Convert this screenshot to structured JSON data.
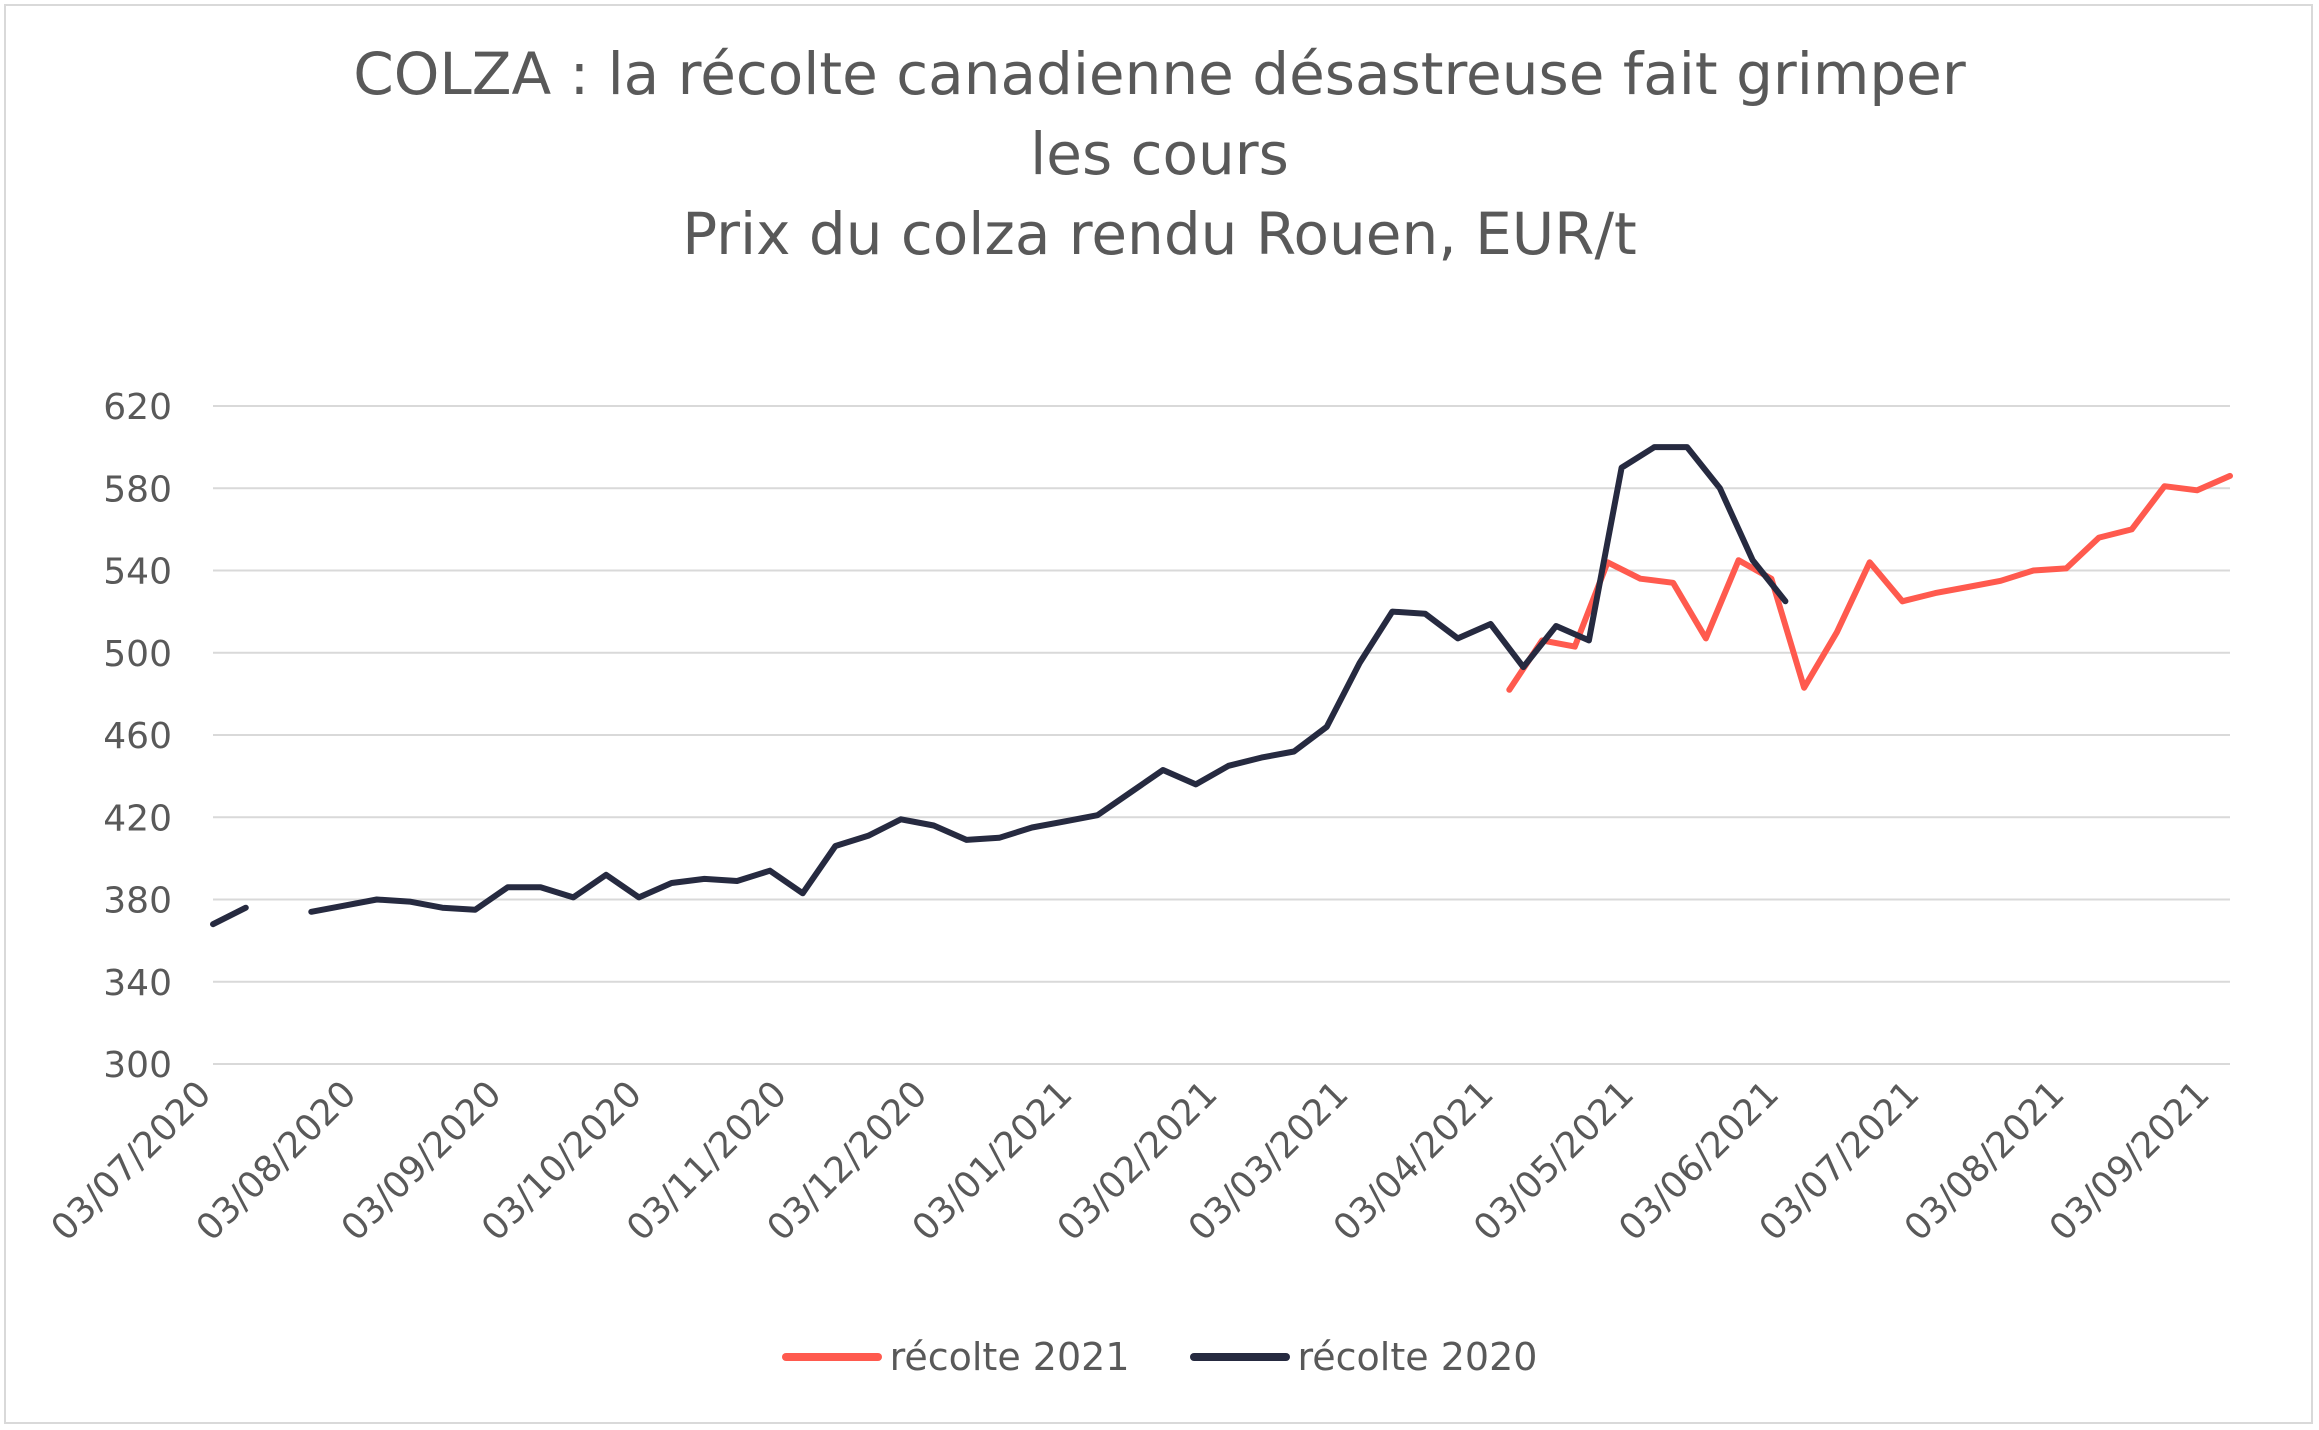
{
  "chart_data": {
    "type": "line",
    "title_lines": [
      "COLZA : la récolte canadienne désastreuse fait grimper",
      "les cours",
      "Prix du colza rendu Rouen, EUR/t"
    ],
    "xlabel": "",
    "ylabel": "",
    "ylim": [
      300,
      620
    ],
    "yticks": [
      300,
      340,
      380,
      420,
      460,
      500,
      540,
      580,
      620
    ],
    "x_tick_labels": [
      "03/07/2020",
      "03/08/2020",
      "03/09/2020",
      "03/10/2020",
      "03/11/2020",
      "03/12/2020",
      "03/01/2021",
      "03/02/2021",
      "03/03/2021",
      "03/04/2021",
      "03/05/2021",
      "03/06/2021",
      "03/07/2021",
      "03/08/2021",
      "03/09/2021"
    ],
    "grid": true,
    "legend_position": "bottom",
    "series": [
      {
        "name": "récolte 2021",
        "color": "#ff5a4e",
        "points": [
          [
            "2021-04-06",
            482
          ],
          [
            "2021-04-13",
            506
          ],
          [
            "2021-04-20",
            503
          ],
          [
            "2021-04-27",
            544
          ],
          [
            "2021-05-04",
            536
          ],
          [
            "2021-05-11",
            534
          ],
          [
            "2021-05-18",
            507
          ],
          [
            "2021-05-25",
            545
          ],
          [
            "2021-06-01",
            536
          ],
          [
            "2021-06-08",
            483
          ],
          [
            "2021-06-15",
            510
          ],
          [
            "2021-06-22",
            544
          ],
          [
            "2021-06-29",
            525
          ],
          [
            "2021-07-06",
            529
          ],
          [
            "2021-07-13",
            532
          ],
          [
            "2021-07-20",
            535
          ],
          [
            "2021-07-27",
            540
          ],
          [
            "2021-08-03",
            541
          ],
          [
            "2021-08-10",
            556
          ],
          [
            "2021-08-17",
            560
          ],
          [
            "2021-08-24",
            581
          ],
          [
            "2021-08-31",
            579
          ],
          [
            "2021-09-07",
            586
          ]
        ]
      },
      {
        "name": "récolte 2020",
        "color": "#262a40",
        "points": [
          [
            "2020-07-03",
            368
          ],
          [
            "2020-07-10",
            376
          ],
          [
            "2020-07-17",
            null
          ],
          [
            "2020-07-24",
            374
          ],
          [
            "2020-07-31",
            377
          ],
          [
            "2020-08-07",
            380
          ],
          [
            "2020-08-14",
            379
          ],
          [
            "2020-08-21",
            376
          ],
          [
            "2020-08-28",
            375
          ],
          [
            "2020-09-04",
            386
          ],
          [
            "2020-09-11",
            386
          ],
          [
            "2020-09-18",
            381
          ],
          [
            "2020-09-25",
            392
          ],
          [
            "2020-10-02",
            381
          ],
          [
            "2020-10-09",
            388
          ],
          [
            "2020-10-16",
            390
          ],
          [
            "2020-10-23",
            389
          ],
          [
            "2020-10-30",
            394
          ],
          [
            "2020-11-06",
            383
          ],
          [
            "2020-11-13",
            406
          ],
          [
            "2020-11-20",
            411
          ],
          [
            "2020-11-27",
            419
          ],
          [
            "2020-12-04",
            416
          ],
          [
            "2020-12-11",
            409
          ],
          [
            "2020-12-18",
            410
          ],
          [
            "2020-12-25",
            415
          ],
          [
            "2021-01-01",
            418
          ],
          [
            "2021-01-08",
            421
          ],
          [
            "2021-01-15",
            432
          ],
          [
            "2021-01-22",
            443
          ],
          [
            "2021-01-29",
            436
          ],
          [
            "2021-02-05",
            445
          ],
          [
            "2021-02-12",
            449
          ],
          [
            "2021-02-19",
            452
          ],
          [
            "2021-02-26",
            464
          ],
          [
            "2021-03-05",
            495
          ],
          [
            "2021-03-12",
            520
          ],
          [
            "2021-03-19",
            519
          ],
          [
            "2021-03-26",
            507
          ],
          [
            "2021-04-02",
            514
          ],
          [
            "2021-04-09",
            493
          ],
          [
            "2021-04-16",
            513
          ],
          [
            "2021-04-23",
            506
          ],
          [
            "2021-04-30",
            590
          ],
          [
            "2021-05-07",
            600
          ],
          [
            "2021-05-14",
            600
          ],
          [
            "2021-05-21",
            580
          ],
          [
            "2021-05-28",
            545
          ],
          [
            "2021-06-04",
            525
          ]
        ]
      }
    ]
  }
}
